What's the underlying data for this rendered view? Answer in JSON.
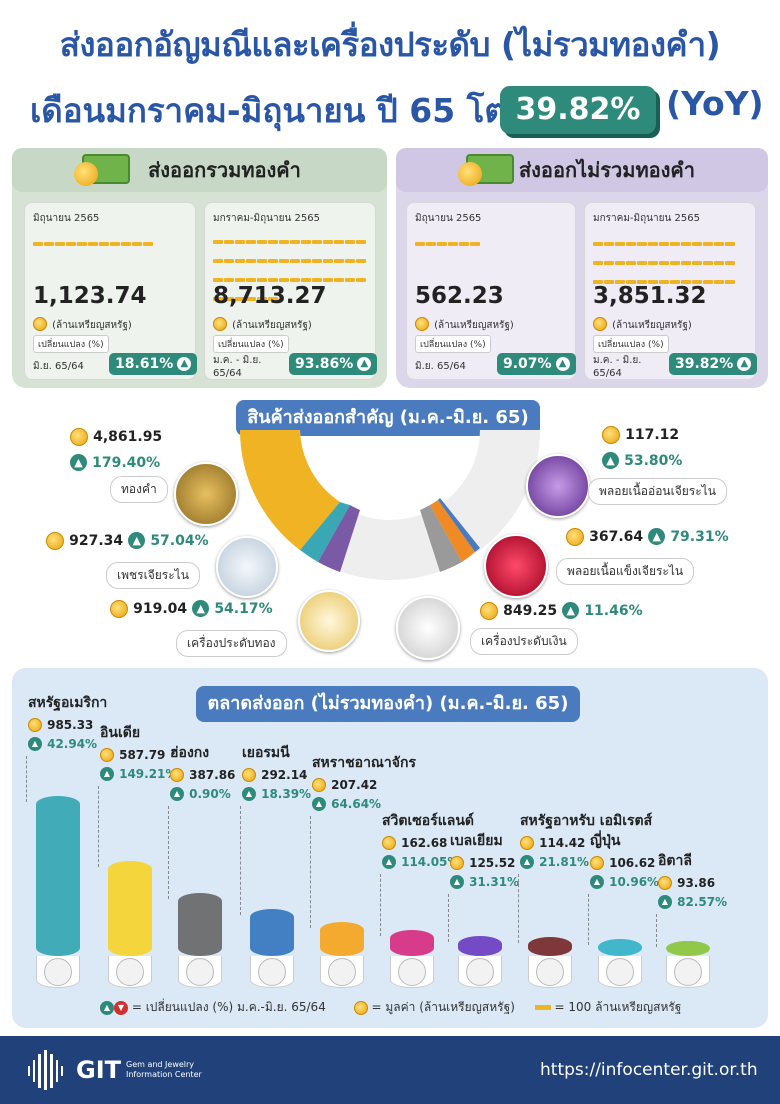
{
  "title": {
    "line1": "ส่งออกอัญมณีและเครื่องประดับ (ไม่รวมทองคำ)",
    "line2": "เดือนมกราคม-มิถุนายน ปี 65 โต",
    "growth": "39.82%",
    "yoy": "(YoY)"
  },
  "with_gold": {
    "header": "ส่งออกรวมทองคำ",
    "cards": [
      {
        "period": "มิถุนายน 2565",
        "value": "1,123.74",
        "unit": "(ล้านเหรียญสหรัฐ)",
        "change_label": "เปลี่ยนแปลง (%)",
        "compare": "มิ.ย. 65/64",
        "change": "18.61%",
        "bars": 11
      },
      {
        "period": "มกราคม-มิถุนายน 2565",
        "value": "8,713.27",
        "unit": "(ล้านเหรียญสหรัฐ)",
        "change_label": "เปลี่ยนแปลง (%)",
        "compare": "ม.ค. - มิ.ย. 65/64",
        "change": "93.86%",
        "bars": 87
      }
    ]
  },
  "without_gold": {
    "header": "ส่งออกไม่รวมทองคำ",
    "cards": [
      {
        "period": "มิถุนายน 2565",
        "value": "562.23",
        "unit": "(ล้านเหรียญสหรัฐ)",
        "change_label": "เปลี่ยนแปลง (%)",
        "compare": "มิ.ย. 65/64",
        "change": "9.07%",
        "bars": 6
      },
      {
        "period": "มกราคม-มิถุนายน 2565",
        "value": "3,851.32",
        "unit": "(ล้านเหรียญสหรัฐ)",
        "change_label": "เปลี่ยนแปลง (%)",
        "compare": "ม.ค. - มิ.ย. 65/64",
        "change": "39.82%",
        "bars": 39
      }
    ]
  },
  "products": {
    "title": "สินค้าส่งออกสำคัญ (ม.ค.-มิ.ย. 65)",
    "items": [
      {
        "name": "ทองคำ",
        "value": "4,861.95",
        "change": "179.40%",
        "color": "#f0b324"
      },
      {
        "name": "เพชรเจียระไน",
        "value": "927.34",
        "change": "57.04%",
        "color": "#3aa8b4"
      },
      {
        "name": "เครื่องประดับทอง",
        "value": "919.04",
        "change": "54.17%",
        "color": "#7a5aa6"
      },
      {
        "name": "เครื่องประดับเงิน",
        "value": "849.25",
        "change": "11.46%",
        "color": "#8a8a8a"
      },
      {
        "name": "พลอยเนื้อแข็งเจียระไน",
        "value": "367.64",
        "change": "79.31%",
        "color": "#f08a24"
      },
      {
        "name": "พลอยเนื้ออ่อนเจียระไน",
        "value": "117.12",
        "change": "53.80%",
        "color": "#4a7bbf"
      }
    ]
  },
  "markets": {
    "title": "ตลาดส่งออก (ไม่รวมทองคำ) (ม.ค.-มิ.ย. 65)",
    "items": [
      {
        "name": "สหรัฐอเมริกา",
        "value": "985.33",
        "change": "42.94%",
        "color": "#3aa8b4"
      },
      {
        "name": "อินเดีย",
        "value": "587.79",
        "change": "149.21%",
        "color": "#f5d431"
      },
      {
        "name": "ฮ่องกง",
        "value": "387.86",
        "change": "0.90%",
        "color": "#6b6b6b"
      },
      {
        "name": "เยอรมนี",
        "value": "292.14",
        "change": "18.39%",
        "color": "#3a7ac0"
      },
      {
        "name": "สหราชอาณาจักร",
        "value": "207.42",
        "change": "64.64%",
        "color": "#f5a623"
      },
      {
        "name": "สวิตเซอร์แลนด์",
        "value": "162.68",
        "change": "114.05%",
        "color": "#d63384"
      },
      {
        "name": "เบลเยียม",
        "value": "125.52",
        "change": "31.31%",
        "color": "#6f42c1"
      },
      {
        "name": "สหรัฐอาหรับ เอมิเรตส์",
        "value": "114.42",
        "change": "21.81%",
        "color": "#7a2e2e"
      },
      {
        "name": "ญี่ปุ่น",
        "value": "106.62",
        "change": "10.96%",
        "color": "#3ab4c8"
      },
      {
        "name": "อิตาลี",
        "value": "93.86",
        "change": "82.57%",
        "color": "#8cc63f"
      }
    ]
  },
  "legend": {
    "change": "= เปลี่ยนแปลง (%) ม.ค.-มิ.ย. 65/64",
    "value": "= มูลค่า (ล้านเหรียญสหรัฐ)",
    "bar": "= 100 ล้านเหรียญสหรัฐ"
  },
  "footer": {
    "brand": "GIT",
    "brand_sub1": "Gem and Jewelry",
    "brand_sub2": "Information Center",
    "url": "https://infocenter.git.or.th"
  }
}
